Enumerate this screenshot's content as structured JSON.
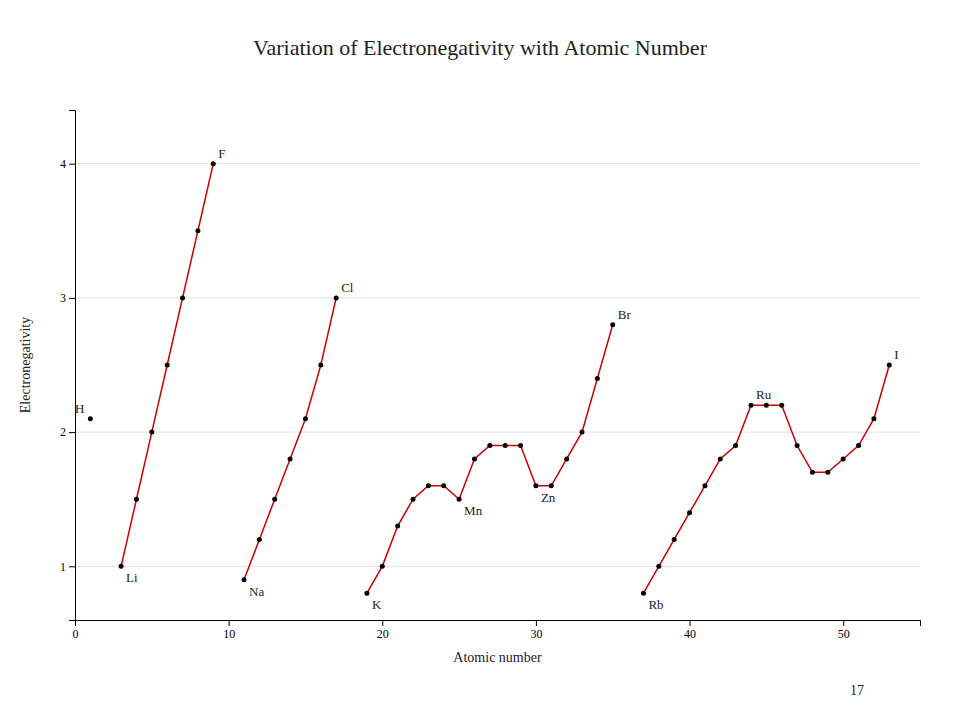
{
  "chart_data": {
    "type": "line",
    "title": "Variation of Electronegativity  with Atomic Number",
    "xlabel": "Atomic number",
    "ylabel": "Electronegativity",
    "page_number": "17",
    "x": [
      1,
      2,
      3,
      4,
      5,
      6,
      7,
      8,
      9,
      10,
      11,
      12,
      13,
      14,
      15,
      16,
      17,
      18,
      19,
      20,
      21,
      22,
      23,
      24,
      25,
      26,
      27,
      28,
      29,
      30,
      31,
      32,
      33,
      34,
      35,
      36,
      37,
      38,
      39,
      40,
      41,
      42,
      43,
      44,
      45,
      46,
      47,
      48,
      49,
      50,
      51,
      52,
      53
    ],
    "values": [
      2.1,
      null,
      1.0,
      1.5,
      2.0,
      2.5,
      3.0,
      3.5,
      4.0,
      null,
      0.9,
      1.2,
      1.5,
      1.8,
      2.1,
      2.5,
      3.0,
      null,
      0.8,
      1.0,
      1.3,
      1.5,
      1.6,
      1.6,
      1.5,
      1.8,
      1.9,
      1.9,
      1.9,
      1.6,
      1.6,
      1.8,
      2.0,
      2.4,
      2.8,
      null,
      0.8,
      1.0,
      1.2,
      1.4,
      1.6,
      1.8,
      1.9,
      2.2,
      2.2,
      2.2,
      1.9,
      1.7,
      1.7,
      1.8,
      1.9,
      2.1,
      2.5
    ],
    "color": "#cc0000",
    "marker": "circle",
    "xlim": [
      0,
      55
    ],
    "ylim": [
      0.6,
      4.4
    ],
    "xticks": [
      0,
      10,
      20,
      30,
      40,
      50
    ],
    "yticks": [
      1,
      2,
      3,
      4
    ],
    "grid": true,
    "annotations": [
      {
        "text": "H",
        "x": 1,
        "y": 2.1
      },
      {
        "text": "Li",
        "x": 3,
        "y": 1.0
      },
      {
        "text": "F",
        "x": 9,
        "y": 4.0
      },
      {
        "text": "Na",
        "x": 11,
        "y": 0.9
      },
      {
        "text": "Cl",
        "x": 17,
        "y": 3.0
      },
      {
        "text": "K",
        "x": 19,
        "y": 0.8
      },
      {
        "text": "Mn",
        "x": 25,
        "y": 1.5
      },
      {
        "text": "Zn",
        "x": 30,
        "y": 1.6
      },
      {
        "text": "Br",
        "x": 35,
        "y": 2.8
      },
      {
        "text": "Rb",
        "x": 37,
        "y": 0.8
      },
      {
        "text": "Ru",
        "x": 44,
        "y": 2.2
      },
      {
        "text": "I",
        "x": 53,
        "y": 2.5
      }
    ]
  }
}
